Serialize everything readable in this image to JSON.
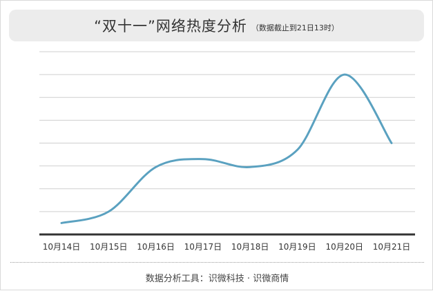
{
  "title": "“双十一”网络热度分析",
  "subtitle": "（数据截止到21日13时）",
  "footer": "数据分析工具：识微科技 · 识微商情",
  "colors": {
    "line": "#5aa1c0",
    "grid": "#cfcfcf",
    "axis": "#333333",
    "title_bg": "#ececec"
  },
  "chart_data": {
    "type": "line",
    "title": "“双十一”网络热度分析",
    "subtitle": "（数据截止到21日13时）",
    "xlabel": "",
    "ylabel": "",
    "categories": [
      "10月14日",
      "10月15日",
      "10月16日",
      "10月17日",
      "10月18日",
      "10月19日",
      "10月20日",
      "10月21日"
    ],
    "series": [
      {
        "values": [
          0.5,
          1.0,
          2.95,
          3.3,
          2.95,
          3.7,
          7.0,
          4.0
        ]
      }
    ],
    "ylim": [
      0,
      8
    ],
    "y_ticks_labeled": false,
    "grid": "horizontal",
    "smooth": true
  }
}
